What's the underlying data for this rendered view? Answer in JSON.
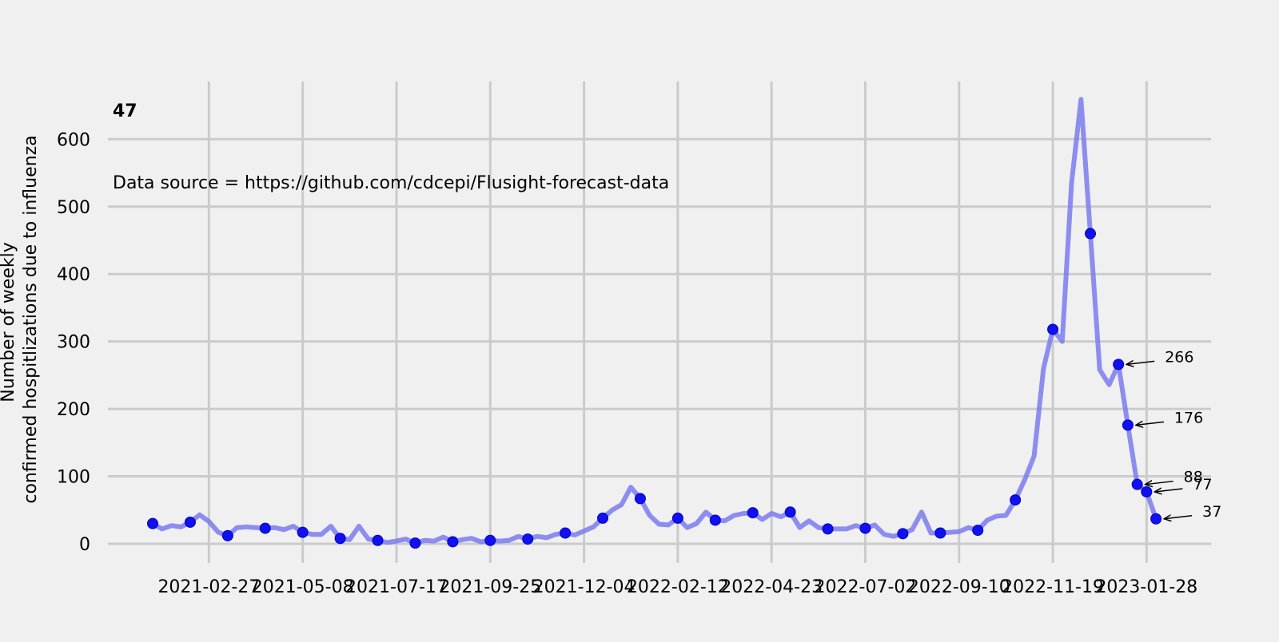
{
  "chart_data": {
    "type": "line",
    "title": "47",
    "annotation_text": "Data source = https://github.com/cdcepi/Flusight-forecast-data",
    "xlabel": "",
    "ylabel_lines": [
      "Number of weekly",
      "confirmed hospitlizations due to influenza"
    ],
    "ylim": [
      -20,
      690
    ],
    "y_ticks": [
      0,
      100,
      200,
      300,
      400,
      500,
      600
    ],
    "x_ticks": [
      "2021-02-27",
      "2021-05-08",
      "2021-07-17",
      "2021-09-25",
      "2021-12-04",
      "2022-02-12",
      "2022-04-23",
      "2022-07-02",
      "2022-09-10",
      "2022-11-19",
      "2023-01-28"
    ],
    "grid": true,
    "line_color": "#7b7bf0",
    "marker_color": "#1010f0",
    "x_start_date": "2021-01-16",
    "series": [
      {
        "values": [
          30,
          22,
          27,
          25,
          32,
          43,
          33,
          17,
          12,
          24,
          25,
          24,
          23,
          24,
          21,
          26,
          17,
          14,
          14,
          26,
          8,
          6,
          26,
          7,
          5,
          2,
          4,
          7,
          1,
          5,
          4,
          10,
          3,
          6,
          8,
          3,
          5,
          4,
          5,
          11,
          7,
          11,
          9,
          14,
          16,
          13,
          19,
          25,
          38,
          50,
          58,
          84,
          67,
          42,
          29,
          28,
          38,
          24,
          30,
          47,
          35,
          34,
          42,
          45,
          46,
          36,
          45,
          40,
          47,
          24,
          34,
          24,
          22,
          22,
          22,
          27,
          23,
          28,
          14,
          11,
          15,
          21,
          47,
          16,
          16,
          17,
          18,
          24,
          20,
          35,
          41,
          42,
          65,
          95,
          130,
          260,
          318,
          300,
          535,
          659,
          460,
          258,
          236,
          266,
          176,
          88,
          77,
          37
        ]
      }
    ],
    "marker_every": 4,
    "callouts": [
      {
        "label": "266",
        "value": 266
      },
      {
        "label": "176",
        "value": 176
      },
      {
        "label": "88",
        "value": 88
      },
      {
        "label": "77",
        "value": 77
      },
      {
        "label": "37",
        "value": 37
      }
    ]
  }
}
